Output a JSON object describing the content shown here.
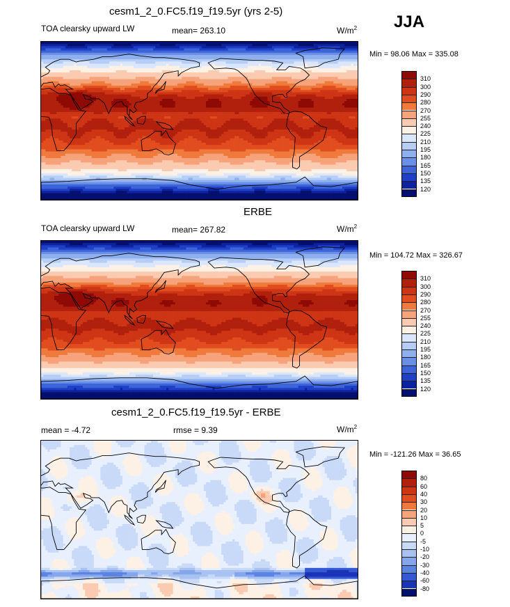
{
  "season": "JJA",
  "panels": [
    {
      "title": "cesm1_2_0.FC5.f19_f19.5yr (yrs 2-5)",
      "left_label": "TOA clearsky upward LW",
      "center_label": "mean= 263.10",
      "units": "W/m",
      "units_sup": "2",
      "minmax": "Min =  98.06 Max = 335.08",
      "levels": [
        "310",
        "300",
        "290",
        "280",
        "270",
        "255",
        "240",
        "225",
        "210",
        "195",
        "180",
        "165",
        "150",
        "135",
        "120"
      ],
      "colors": [
        "#8f0a05",
        "#b0200c",
        "#cd3515",
        "#e14d1f",
        "#f07a3c",
        "#f6a27a",
        "#fbcbb1",
        "#fdf1e6",
        "#dae6fb",
        "#b6cdf5",
        "#8fb0ef",
        "#6a8fe6",
        "#3d64d8",
        "#1f3fc6",
        "#0c229f",
        "#050f6e"
      ],
      "palette": "warm"
    },
    {
      "title": "ERBE",
      "left_label": "TOA clearsky upward LW",
      "center_label": "mean= 267.82",
      "units": "W/m",
      "units_sup": "2",
      "minmax": "Min = 104.72 Max = 326.67",
      "levels": [
        "310",
        "300",
        "290",
        "280",
        "270",
        "255",
        "240",
        "225",
        "210",
        "195",
        "180",
        "165",
        "150",
        "135",
        "120"
      ],
      "colors": [
        "#8f0a05",
        "#b0200c",
        "#cd3515",
        "#e14d1f",
        "#f07a3c",
        "#f6a27a",
        "#fbcbb1",
        "#fdf1e6",
        "#dae6fb",
        "#b6cdf5",
        "#8fb0ef",
        "#6a8fe6",
        "#3d64d8",
        "#1f3fc6",
        "#0c229f",
        "#050f6e"
      ],
      "palette": "warm"
    },
    {
      "title": "cesm1_2_0.FC5.f19_f19.5yr - ERBE",
      "left_label": "mean =  -4.72",
      "center_label": "rmse =   9.39",
      "units": "W/m",
      "units_sup": "2",
      "minmax": "Min = -121.26 Max =  36.65",
      "levels": [
        "80",
        "60",
        "40",
        "30",
        "20",
        "10",
        "5",
        "0",
        "-5",
        "-10",
        "-20",
        "-30",
        "-40",
        "-60",
        "-80"
      ],
      "colors": [
        "#8f0a05",
        "#b0200c",
        "#cd3515",
        "#e14d1f",
        "#f07a3c",
        "#f6a27a",
        "#fbcbb1",
        "#fdf1e6",
        "#e8effd",
        "#c9daf8",
        "#a8c2f2",
        "#86a6ec",
        "#5d83e2",
        "#3558d4",
        "#1a34b8",
        "#050f6e"
      ],
      "palette": "diff"
    }
  ]
}
